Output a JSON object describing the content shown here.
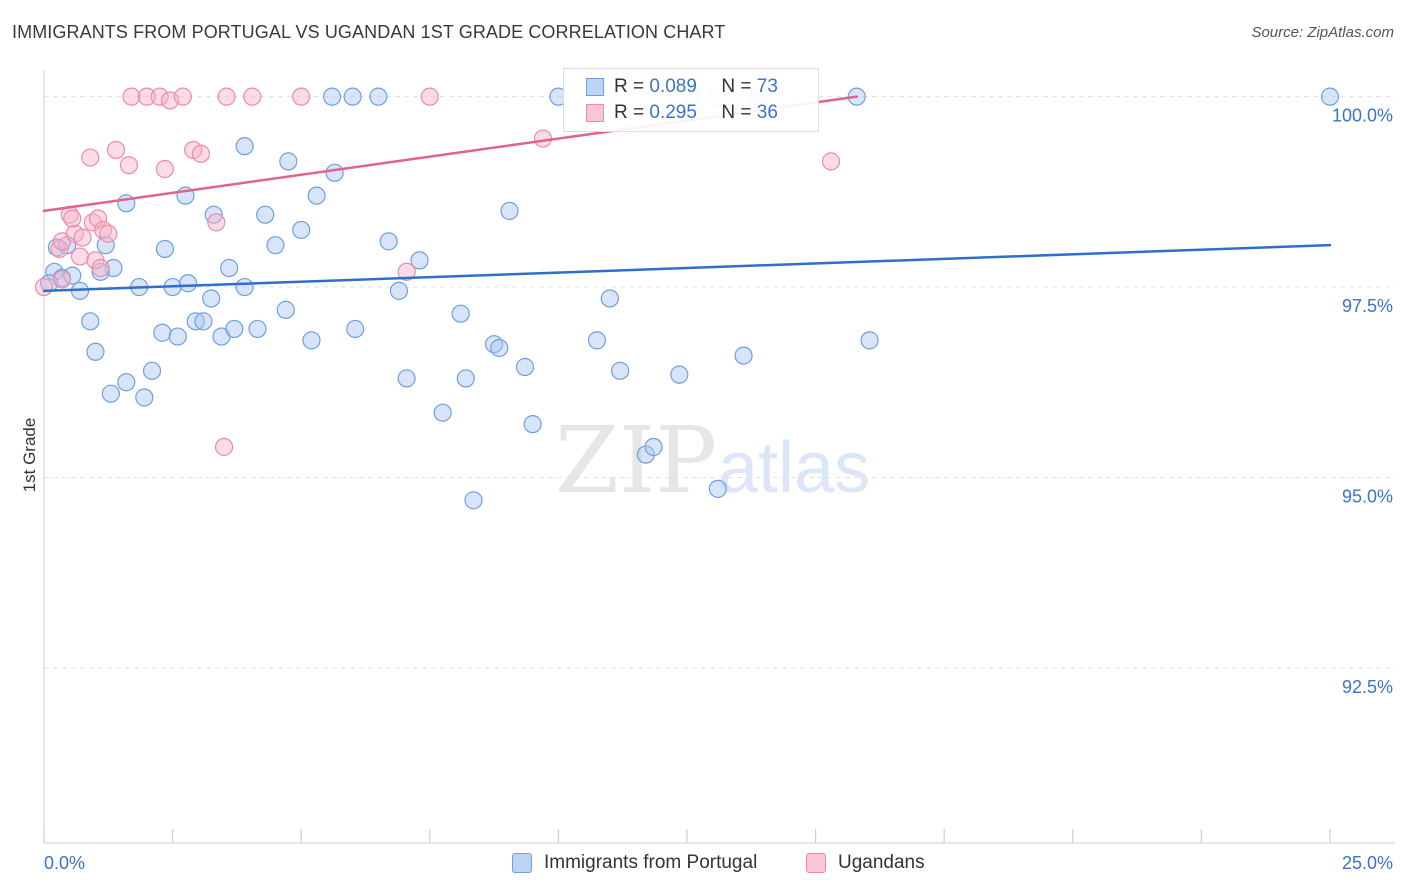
{
  "header": {
    "title": "IMMIGRANTS FROM PORTUGAL VS UGANDAN 1ST GRADE CORRELATION CHART",
    "source": "Source: ZipAtlas.com"
  },
  "watermark": {
    "part1": "ZIP",
    "part2": "atlas"
  },
  "legend": {
    "r_label": "R =",
    "n_label": "N =",
    "items": [
      {
        "r": "0.089",
        "n": "73"
      },
      {
        "r": "0.295",
        "n": "36"
      }
    ]
  },
  "chart_data": {
    "type": "scatter",
    "xlabel": "",
    "ylabel": "1st Grade",
    "xlim": [
      0,
      25
    ],
    "ylim": [
      90.2,
      100.35
    ],
    "x_tick_labels": [
      "0.0%",
      "25.0%"
    ],
    "y_ticks": [
      92.5,
      95.0,
      97.5,
      100.0
    ],
    "y_tick_labels": [
      "92.5%",
      "95.0%",
      "97.5%",
      "100.0%"
    ],
    "grid": true,
    "legend_position": "top-center",
    "colors": {
      "blue": "#6f9fe0",
      "pink": "#ee8aab",
      "blue_line": "#2f6fcb",
      "pink_line": "#e0628e",
      "tick_text": "#3b73c9"
    },
    "series": [
      {
        "name": "Immigrants from Portugal",
        "color": "blue",
        "trend": [
          [
            0.0,
            97.45
          ],
          [
            25.0,
            98.05
          ]
        ],
        "points": [
          [
            0.2,
            97.7
          ],
          [
            0.25,
            98.02
          ],
          [
            0.35,
            97.62
          ],
          [
            0.45,
            98.05
          ],
          [
            0.55,
            97.65
          ],
          [
            0.7,
            97.45
          ],
          [
            0.9,
            97.05
          ],
          [
            1.0,
            96.65
          ],
          [
            1.2,
            98.05
          ],
          [
            1.35,
            97.75
          ],
          [
            1.3,
            96.1
          ],
          [
            1.6,
            96.25
          ],
          [
            1.6,
            98.6
          ],
          [
            1.85,
            97.5
          ],
          [
            1.95,
            96.05
          ],
          [
            2.1,
            96.4
          ],
          [
            2.3,
            96.9
          ],
          [
            2.35,
            98.0
          ],
          [
            2.5,
            97.5
          ],
          [
            2.6,
            96.85
          ],
          [
            2.75,
            98.7
          ],
          [
            2.8,
            97.55
          ],
          [
            2.95,
            97.05
          ],
          [
            3.1,
            97.05
          ],
          [
            3.25,
            97.35
          ],
          [
            3.3,
            98.45
          ],
          [
            3.45,
            96.85
          ],
          [
            3.6,
            97.75
          ],
          [
            3.7,
            96.95
          ],
          [
            3.9,
            97.5
          ],
          [
            3.9,
            99.35
          ],
          [
            4.15,
            96.95
          ],
          [
            4.3,
            98.45
          ],
          [
            4.5,
            98.05
          ],
          [
            4.7,
            97.2
          ],
          [
            4.75,
            99.15
          ],
          [
            5.0,
            98.25
          ],
          [
            5.2,
            96.8
          ],
          [
            5.3,
            98.7
          ],
          [
            5.65,
            99.0
          ],
          [
            6.05,
            96.95
          ],
          [
            6.7,
            98.1
          ],
          [
            6.9,
            97.45
          ],
          [
            7.05,
            96.3
          ],
          [
            7.3,
            97.85
          ],
          [
            7.75,
            95.85
          ],
          [
            8.1,
            97.15
          ],
          [
            8.2,
            96.3
          ],
          [
            8.35,
            94.7
          ],
          [
            8.75,
            96.75
          ],
          [
            8.85,
            96.7
          ],
          [
            9.05,
            98.5
          ],
          [
            9.35,
            96.45
          ],
          [
            9.5,
            95.7
          ],
          [
            10.0,
            100.0
          ],
          [
            10.75,
            96.8
          ],
          [
            11.0,
            97.35
          ],
          [
            11.2,
            96.4
          ],
          [
            11.7,
            95.3
          ],
          [
            11.85,
            95.4
          ],
          [
            12.35,
            96.35
          ],
          [
            13.1,
            94.85
          ],
          [
            13.6,
            96.6
          ],
          [
            15.8,
            100.0
          ],
          [
            16.05,
            96.8
          ],
          [
            5.6,
            100.0
          ],
          [
            6.0,
            100.0
          ],
          [
            6.5,
            100.0
          ],
          [
            12.6,
            100.0
          ],
          [
            13.9,
            100.0
          ],
          [
            25.0,
            100.0
          ],
          [
            0.1,
            97.55
          ],
          [
            1.1,
            97.7
          ]
        ]
      },
      {
        "name": "Ugandans",
        "color": "pink",
        "trend": [
          [
            0.0,
            98.5
          ],
          [
            15.8,
            100.0
          ]
        ],
        "points": [
          [
            0.0,
            97.5
          ],
          [
            0.3,
            98.0
          ],
          [
            0.35,
            98.1
          ],
          [
            0.35,
            97.6
          ],
          [
            0.5,
            98.45
          ],
          [
            0.6,
            98.2
          ],
          [
            0.55,
            98.4
          ],
          [
            0.7,
            97.9
          ],
          [
            0.75,
            98.15
          ],
          [
            0.9,
            99.2
          ],
          [
            0.95,
            98.35
          ],
          [
            1.0,
            97.85
          ],
          [
            1.05,
            98.4
          ],
          [
            1.1,
            97.75
          ],
          [
            1.15,
            98.25
          ],
          [
            1.25,
            98.2
          ],
          [
            1.4,
            99.3
          ],
          [
            1.65,
            99.1
          ],
          [
            1.7,
            100.0
          ],
          [
            2.0,
            100.0
          ],
          [
            2.25,
            100.0
          ],
          [
            2.35,
            99.05
          ],
          [
            2.45,
            99.95
          ],
          [
            2.7,
            100.0
          ],
          [
            2.9,
            99.3
          ],
          [
            3.05,
            99.25
          ],
          [
            3.35,
            98.35
          ],
          [
            3.5,
            95.4
          ],
          [
            3.55,
            100.0
          ],
          [
            4.05,
            100.0
          ],
          [
            5.0,
            100.0
          ],
          [
            7.05,
            97.7
          ],
          [
            7.5,
            100.0
          ],
          [
            9.7,
            99.45
          ],
          [
            13.1,
            100.0
          ],
          [
            15.3,
            99.15
          ]
        ]
      }
    ]
  }
}
